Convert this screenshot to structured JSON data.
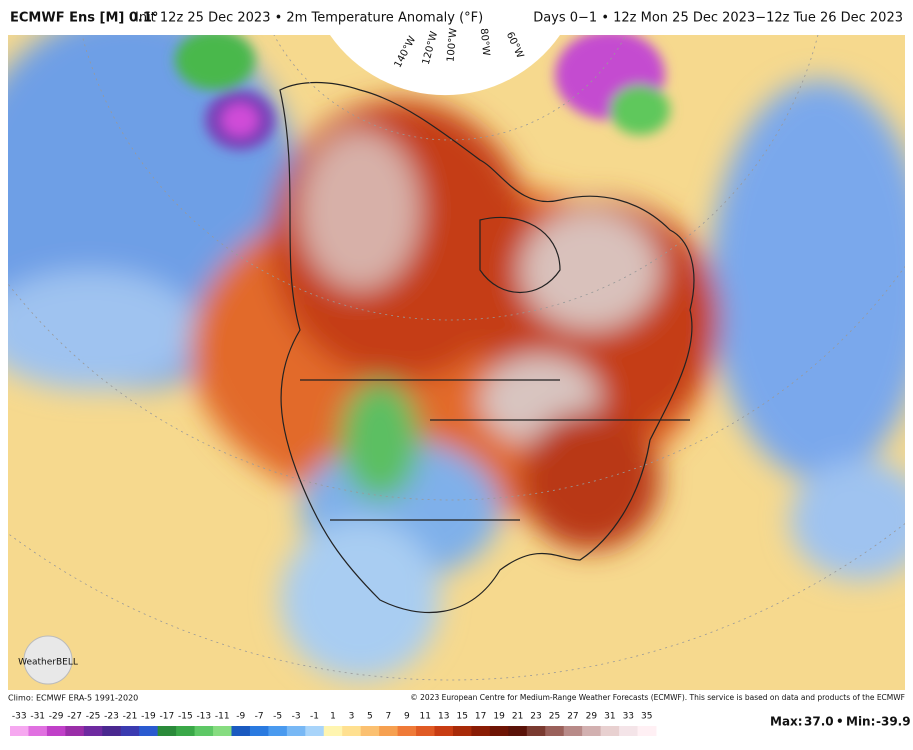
{
  "header": {
    "model": "ECMWF Ens [M] 0.1°",
    "title": "Init 12z 25 Dec 2023 • 2m Temperature Anomaly (°F)",
    "period": "Days 0−1 • 12z Mon 25 Dec 2023−12z Tue 26 Dec 2023"
  },
  "map": {
    "longitude_labels": [
      "140°W",
      "120°W",
      "100°W",
      "80°W",
      "60°W"
    ],
    "logo": "WeatherBELL"
  },
  "footer": {
    "climo": "Climo: ECMWF ERA-5 1991-2020",
    "copyright": "© 2023 European Centre for Medium-Range Weather Forecasts (ECMWF). This service is based on data and products of the ECMWF"
  },
  "colorbar": {
    "labels": [
      "-33",
      "-31",
      "-29",
      "-27",
      "-25",
      "-23",
      "-21",
      "-19",
      "-17",
      "-15",
      "-13",
      "-11",
      "-9",
      "-7",
      "-5",
      "-3",
      "-1",
      "1",
      "3",
      "5",
      "7",
      "9",
      "11",
      "13",
      "15",
      "17",
      "19",
      "21",
      "23",
      "25",
      "27",
      "29",
      "31",
      "33",
      "35"
    ]
  },
  "stats": {
    "max_label": "Max:",
    "max": "37.0",
    "separator": "•",
    "min_label": "Min:",
    "min": "-39.9"
  }
}
